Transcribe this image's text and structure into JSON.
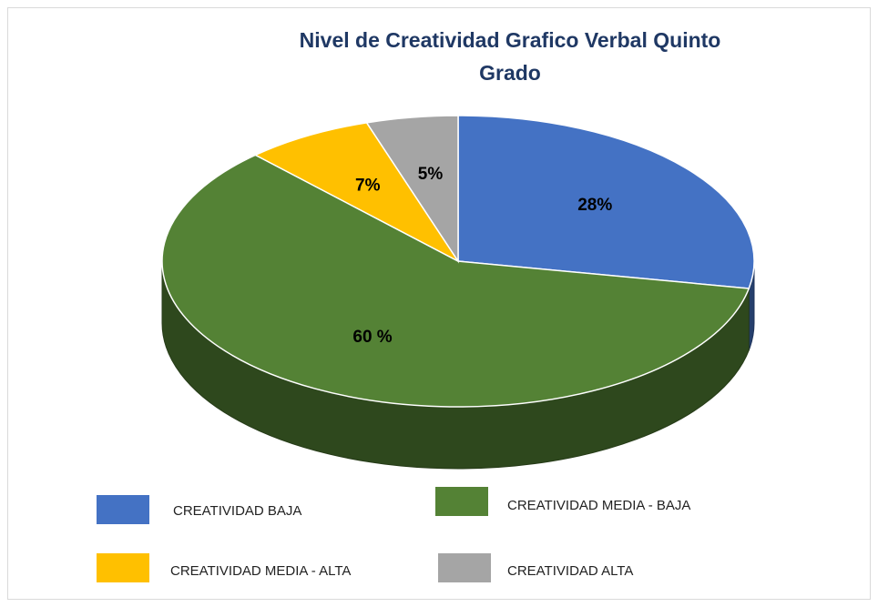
{
  "chart_data": {
    "type": "pie3d",
    "title": "Nivel de Creatividad Grafico Verbal Quinto Grado",
    "categories": [
      "CREATIVIDAD BAJA",
      "CREATIVIDAD MEDIA - BAJA",
      "CREATIVIDAD MEDIA - ALTA",
      "CREATIVIDAD ALTA"
    ],
    "values": [
      28,
      60,
      7,
      5
    ],
    "value_labels": [
      "28%",
      "60 %",
      "7%",
      "5%"
    ],
    "colors": [
      "#4472c4",
      "#548235",
      "#ffc000",
      "#a5a5a5"
    ]
  }
}
